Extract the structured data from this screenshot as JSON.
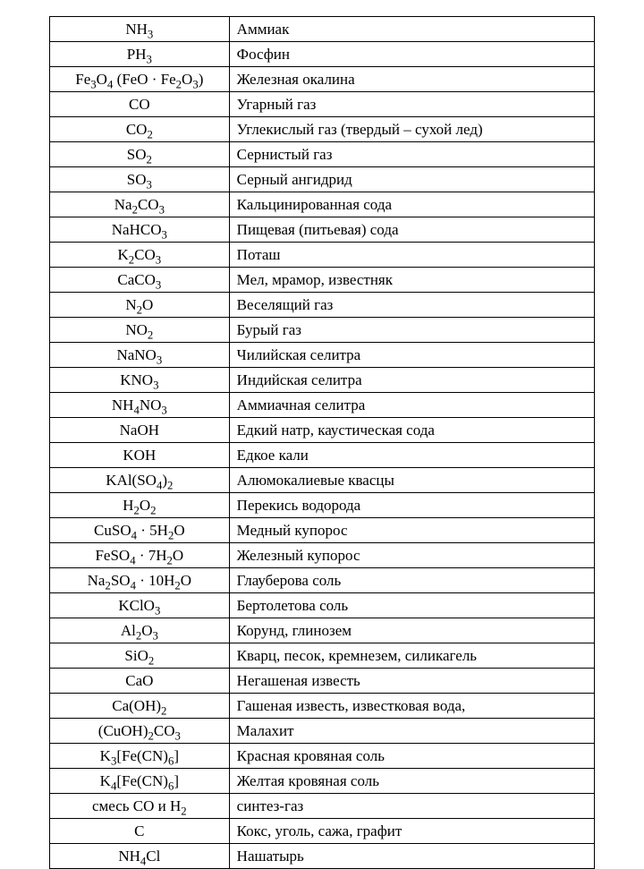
{
  "table": {
    "columns": [
      "formula",
      "name"
    ],
    "col_widths_pct": [
      32,
      68
    ],
    "border_color": "#000000",
    "background_color": "#ffffff",
    "text_color": "#000000",
    "font_family": "Times New Roman",
    "font_size_pt": 13,
    "rows": [
      {
        "formula_html": "NH<sub>3</sub>",
        "formula_plain": "NH3",
        "name": "Аммиак"
      },
      {
        "formula_html": "PH<sub>3</sub>",
        "formula_plain": "PH3",
        "name": "Фосфин"
      },
      {
        "formula_html": "Fe<sub>3</sub>O<sub>4</sub> (FeO · Fe<sub>2</sub>O<sub>3</sub>)",
        "formula_plain": "Fe3O4 (FeO · Fe2O3)",
        "name": "Железная окалина"
      },
      {
        "formula_html": "CO",
        "formula_plain": "CO",
        "name": "Угарный газ"
      },
      {
        "formula_html": "CO<sub>2</sub>",
        "formula_plain": "CO2",
        "name": "Углекислый газ (твердый – сухой лед)"
      },
      {
        "formula_html": "SO<sub>2</sub>",
        "formula_plain": "SO2",
        "name": "Сернистый газ"
      },
      {
        "formula_html": "SO<sub>3</sub>",
        "formula_plain": "SO3",
        "name": "Серный ангидрид"
      },
      {
        "formula_html": "Na<sub>2</sub>CO<sub>3</sub>",
        "formula_plain": "Na2CO3",
        "name": "Кальцинированная сода"
      },
      {
        "formula_html": "NaHCO<sub>3</sub>",
        "formula_plain": "NaHCO3",
        "name": "Пищевая (питьевая) сода"
      },
      {
        "formula_html": "K<sub>2</sub>CO<sub>3</sub>",
        "formula_plain": "K2CO3",
        "name": "Поташ"
      },
      {
        "formula_html": "CaCO<sub>3</sub>",
        "formula_plain": "CaCO3",
        "name": "Мел, мрамор, известняк"
      },
      {
        "formula_html": "N<sub>2</sub>O",
        "formula_plain": "N2O",
        "name": "Веселящий газ"
      },
      {
        "formula_html": "NO<sub>2</sub>",
        "formula_plain": "NO2",
        "name": "Бурый газ"
      },
      {
        "formula_html": "NaNO<sub>3</sub>",
        "formula_plain": "NaNO3",
        "name": "Чилийская селитра"
      },
      {
        "formula_html": "KNO<sub>3</sub>",
        "formula_plain": "KNO3",
        "name": "Индийская селитра"
      },
      {
        "formula_html": "NH<sub>4</sub>NO<sub>3</sub>",
        "formula_plain": "NH4NO3",
        "name": "Аммиачная селитра"
      },
      {
        "formula_html": "NaOH",
        "formula_plain": "NaOH",
        "name": "Едкий натр, каустическая сода"
      },
      {
        "formula_html": "KOH",
        "formula_plain": "KOH",
        "name": "Едкое кали"
      },
      {
        "formula_html": "KAl(SO<sub>4</sub>)<sub>2</sub>",
        "formula_plain": "KAl(SO4)2",
        "name": "Алюмокалиевые квасцы"
      },
      {
        "formula_html": "H<sub>2</sub>O<sub>2</sub>",
        "formula_plain": "H2O2",
        "name": "Перекись водорода"
      },
      {
        "formula_html": "CuSO<sub>4</sub> · 5H<sub>2</sub>O",
        "formula_plain": "CuSO4 · 5H2O",
        "name": "Медный купорос"
      },
      {
        "formula_html": "FeSO<sub>4</sub> · 7H<sub>2</sub>O",
        "formula_plain": "FeSO4 · 7H2O",
        "name": "Железный купорос"
      },
      {
        "formula_html": "Na<sub>2</sub>SO<sub>4</sub> · 10H<sub>2</sub>O",
        "formula_plain": "Na2SO4 · 10H2O",
        "name": "Глауберова соль"
      },
      {
        "formula_html": "KClO<sub>3</sub>",
        "formula_plain": "KClO3",
        "name": "Бертолетова соль"
      },
      {
        "formula_html": "Al<sub>2</sub>O<sub>3</sub>",
        "formula_plain": "Al2O3",
        "name": "Корунд, глинозем"
      },
      {
        "formula_html": "SiO<sub>2</sub>",
        "formula_plain": "SiO2",
        "name": "Кварц, песок, кремнезем, силикагель"
      },
      {
        "formula_html": "CaO",
        "formula_plain": "CaO",
        "name": "Негашеная известь"
      },
      {
        "formula_html": "Ca(OH)<sub>2</sub>",
        "formula_plain": "Ca(OH)2",
        "name": "Гашеная известь, известковая вода,"
      },
      {
        "formula_html": "(CuOH)<sub>2</sub>CO<sub>3</sub>",
        "formula_plain": "(CuOH)2CO3",
        "name": "Малахит"
      },
      {
        "formula_html": "K<sub>3</sub>[Fe(CN)<sub>6</sub>]",
        "formula_plain": "K3[Fe(CN)6]",
        "name": "Красная кровяная соль"
      },
      {
        "formula_html": "K<sub>4</sub>[Fe(CN)<sub>6</sub>]",
        "formula_plain": "K4[Fe(CN)6]",
        "name": "Желтая кровяная соль"
      },
      {
        "formula_html": "смесь CO и H<sub>2</sub>",
        "formula_plain": "смесь CO и H2",
        "name": "синтез-газ"
      },
      {
        "formula_html": "C",
        "formula_plain": "C",
        "name": "Кокс, уголь, сажа, графит"
      },
      {
        "formula_html": "NH<sub>4</sub>Cl",
        "formula_plain": "NH4Cl",
        "name": "Нашатырь"
      }
    ]
  }
}
